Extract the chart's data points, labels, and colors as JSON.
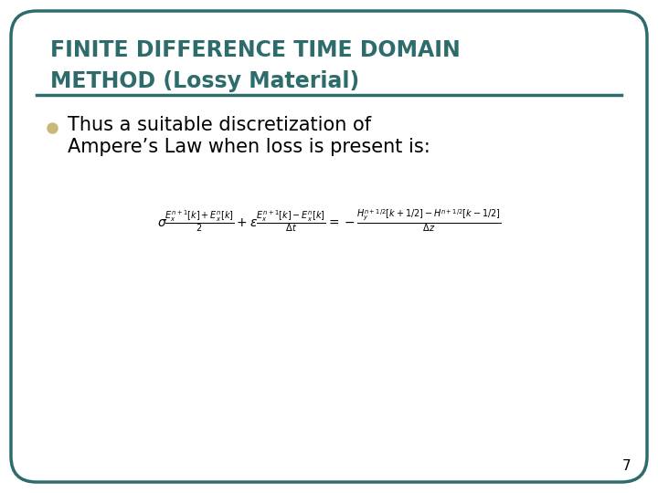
{
  "title_line1": "FINITE DIFFERENCE TIME DOMAIN",
  "title_line2": "METHOD (Lossy Material)",
  "title_color": "#2E6B6B",
  "bullet_text_line1": "Thus a suitable discretization of",
  "bullet_text_line2": "Ampere’s Law when loss is present is:",
  "bullet_color": "#C8B87A",
  "background_color": "#FFFFFF",
  "border_color": "#2E6B6B",
  "separator_color": "#2E6B6B",
  "page_number": "7",
  "title_fontsize": 17,
  "bullet_fontsize": 15,
  "formula_fontsize": 10
}
